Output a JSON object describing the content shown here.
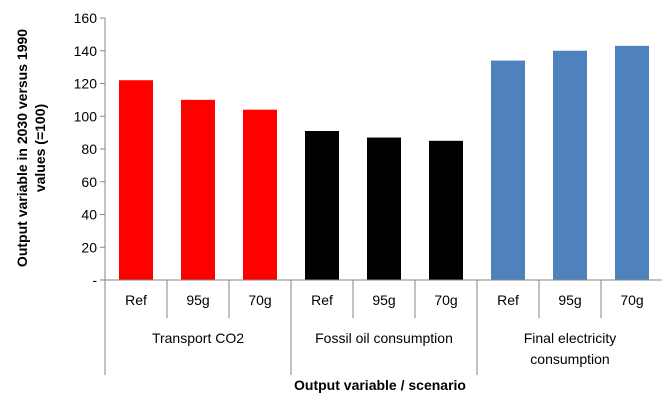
{
  "chart_data": {
    "type": "bar",
    "title": "",
    "ylabel_lines": [
      "Output variable in 2030  versus 1990",
      "values (=100)"
    ],
    "xlabel": "Output variable / scenario",
    "ylim": [
      0,
      160
    ],
    "yticks": [
      0,
      20,
      40,
      60,
      80,
      100,
      120,
      140,
      160
    ],
    "yticks_labels": [
      "-",
      "20",
      "40",
      "60",
      "80",
      "100",
      "120",
      "140",
      "160"
    ],
    "grid": false,
    "groups": [
      {
        "label_lines": [
          "Transport CO2"
        ],
        "color": "#ff0000",
        "categories": [
          "Ref",
          "95g",
          "70g"
        ],
        "values": [
          122,
          110,
          104
        ]
      },
      {
        "label_lines": [
          "Fossil oil consumption"
        ],
        "color": "#000000",
        "categories": [
          "Ref",
          "95g",
          "70g"
        ],
        "values": [
          91,
          87,
          85
        ]
      },
      {
        "label_lines": [
          "Final electricity",
          "consumption"
        ],
        "color": "#4f81bd",
        "categories": [
          "Ref",
          "95g",
          "70g"
        ],
        "values": [
          134,
          140,
          143
        ]
      }
    ]
  }
}
